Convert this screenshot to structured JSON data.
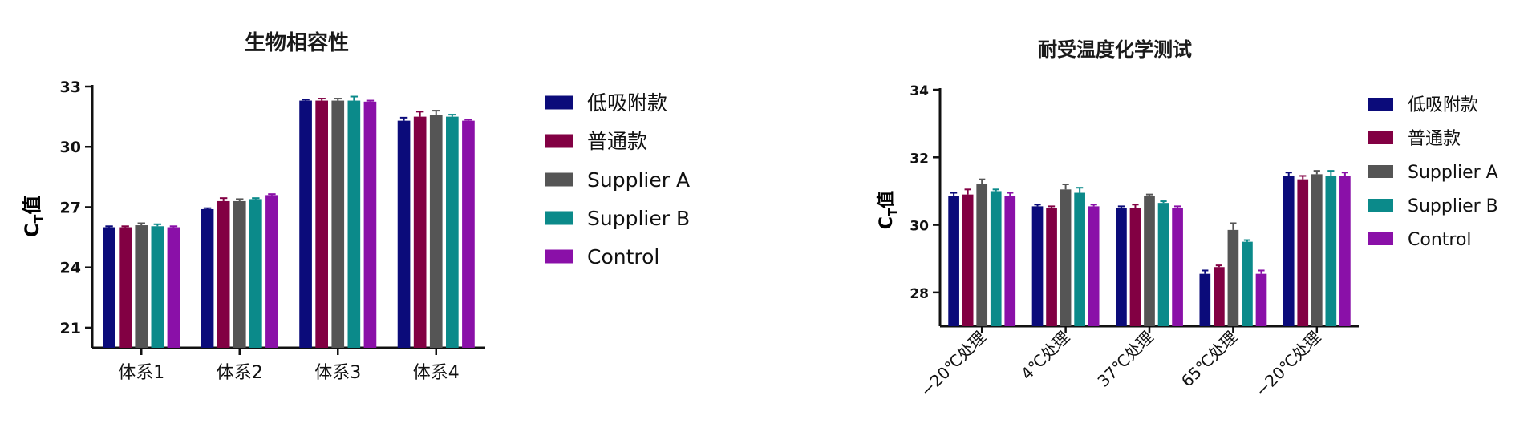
{
  "colors": {
    "series": [
      "#0b0b7a",
      "#820043",
      "#555555",
      "#0b8a8a",
      "#8a10a8"
    ]
  },
  "chart_data": [
    {
      "type": "bar",
      "title": "生物相容性",
      "ylabel_main": "C",
      "ylabel_sub": "T",
      "ylabel_suffix": "值",
      "xlabel": "",
      "ylim": [
        20,
        33
      ],
      "yticks": [
        21,
        24,
        27,
        30,
        33
      ],
      "categories": [
        "体系1",
        "体系2",
        "体系3",
        "体系4"
      ],
      "legend_position": "right",
      "grid": false,
      "series": [
        {
          "name": "低吸附款",
          "values": [
            26.0,
            26.9,
            32.3,
            31.3
          ],
          "errors": [
            0.05,
            0.05,
            0.05,
            0.15
          ]
        },
        {
          "name": "普通款",
          "values": [
            26.0,
            27.3,
            32.3,
            31.5
          ],
          "errors": [
            0.05,
            0.15,
            0.1,
            0.25
          ]
        },
        {
          "name": "Supplier A",
          "values": [
            26.1,
            27.3,
            32.3,
            31.6
          ],
          "errors": [
            0.1,
            0.1,
            0.1,
            0.2
          ]
        },
        {
          "name": "Supplier B",
          "values": [
            26.05,
            27.4,
            32.3,
            31.5
          ],
          "errors": [
            0.1,
            0.05,
            0.2,
            0.1
          ]
        },
        {
          "name": "Control",
          "values": [
            26.0,
            27.6,
            32.25,
            31.3
          ],
          "errors": [
            0.05,
            0.05,
            0.05,
            0.05
          ]
        }
      ]
    },
    {
      "type": "bar",
      "title": "耐受温度化学测试",
      "ylabel_main": "C",
      "ylabel_sub": "T",
      "ylabel_suffix": "值",
      "xlabel": "",
      "ylim": [
        27,
        34
      ],
      "yticks": [
        28,
        30,
        32,
        34
      ],
      "categories": [
        "−20℃处理",
        "4℃处理",
        "37℃处理",
        "65℃处理",
        "−20℃处理"
      ],
      "legend_position": "right",
      "grid": false,
      "series": [
        {
          "name": "低吸附款",
          "values": [
            30.85,
            30.55,
            30.5,
            28.55,
            31.45
          ],
          "errors": [
            0.1,
            0.05,
            0.05,
            0.1,
            0.1
          ]
        },
        {
          "name": "普通款",
          "values": [
            30.9,
            30.5,
            30.5,
            28.75,
            31.35
          ],
          "errors": [
            0.15,
            0.05,
            0.1,
            0.05,
            0.1
          ]
        },
        {
          "name": "Supplier A",
          "values": [
            31.2,
            31.05,
            30.85,
            29.85,
            31.5
          ],
          "errors": [
            0.15,
            0.15,
            0.05,
            0.2,
            0.1
          ]
        },
        {
          "name": "Supplier B",
          "values": [
            31.0,
            30.95,
            30.65,
            29.5,
            31.45
          ],
          "errors": [
            0.05,
            0.15,
            0.05,
            0.05,
            0.15
          ]
        },
        {
          "name": "Control",
          "values": [
            30.85,
            30.55,
            30.5,
            28.55,
            31.45
          ],
          "errors": [
            0.1,
            0.05,
            0.05,
            0.1,
            0.1
          ]
        }
      ]
    }
  ]
}
